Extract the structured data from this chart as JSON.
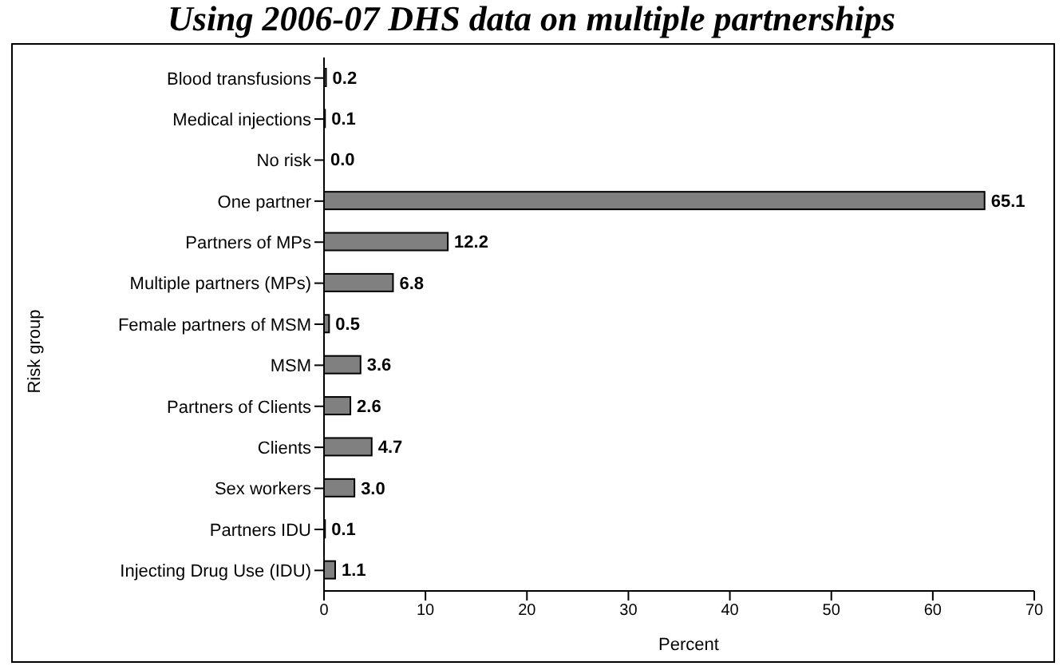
{
  "chart_data": {
    "type": "bar",
    "orientation": "horizontal",
    "title": "Using 2006-07 DHS data on multiple partnerships",
    "xlabel": "Percent",
    "ylabel": "Risk group",
    "categories": [
      "Blood transfusions",
      "Medical injections",
      "No risk",
      "One partner",
      "Partners of MPs",
      "Multiple partners (MPs)",
      "Female partners of MSM",
      "MSM",
      "Partners of Clients",
      "Clients",
      "Sex workers",
      "Partners IDU",
      "Injecting Drug Use (IDU)"
    ],
    "values": [
      0.2,
      0.1,
      0.0,
      65.1,
      12.2,
      6.8,
      0.5,
      3.6,
      2.6,
      4.7,
      3.0,
      0.1,
      1.1
    ],
    "value_labels": [
      "0.2",
      "0.1",
      "0.0",
      "65.1",
      "12.2",
      "6.8",
      "0.5",
      "3.6",
      "2.6",
      "4.7",
      "3.0",
      "0.1",
      "1.1"
    ],
    "color": "#808080",
    "xlim": [
      0,
      70
    ],
    "xticks": [
      0,
      10,
      20,
      30,
      40,
      50,
      60,
      70
    ],
    "grid": false
  }
}
